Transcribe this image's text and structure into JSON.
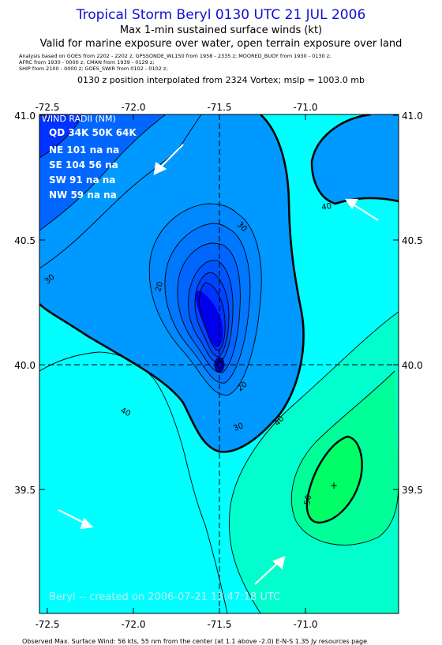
{
  "header": {
    "title": "Tropical Storm Beryl 0130 UTC 21 JUL 2006",
    "line1": "Max 1-min sustained surface winds (kt)",
    "line2": "Valid for marine exposure over water, open terrain exposure over land",
    "analysis_lines": [
      "Analysis based on  GOES from 2202 - 2202 z;  GPSSONDE_WL150 from 1958 - 2335 z;  MOORED_BUOY from 1930 - 0130 z;",
      "AFRC from 1930 - 0000 z;  CMAN from 1939 - 0129 z;",
      "SHIP from 2100 - 0000 z;  GOES_SWIR from 0102 - 0102 z;"
    ],
    "position_line": "0130 z position interpolated from 2324 Vortex; mslp = 1003.0 mb"
  },
  "map": {
    "x_ticks": [
      "-72.5",
      "-72.0",
      "-71.5",
      "-71.0"
    ],
    "y_ticks": [
      "41.0",
      "40.5",
      "40.0",
      "39.5"
    ],
    "contour_labels": [
      "20",
      "20",
      "30",
      "30",
      "30",
      "40",
      "40",
      "40",
      "50"
    ],
    "center_mark": "+",
    "credit": "Beryl -- created on 2006-07-21 13:47:18 UTC",
    "colors": {
      "deep_blue": "#0033ff",
      "blue": "#0066ff",
      "sky": "#0099ff",
      "light_sky": "#00bfff",
      "cyan": "#00ffff",
      "aqua": "#00ffcc",
      "sea_green": "#00ff99",
      "green": "#00ff66",
      "core": "#0000ee"
    }
  },
  "wind_radii": {
    "title": "WIND RADII (NM)",
    "header": "QD 34K 50K 64K",
    "rows": [
      "NE 101  na  na",
      "SE 104  56  na",
      "SW  91  na  na",
      "NW  59  na  na"
    ]
  },
  "footer": "Observed Max. Surface Wind: 56 kts, 55 nm from the center (at 1.1 above -2.0)  E-N-S  1.35 Jy resources page"
}
